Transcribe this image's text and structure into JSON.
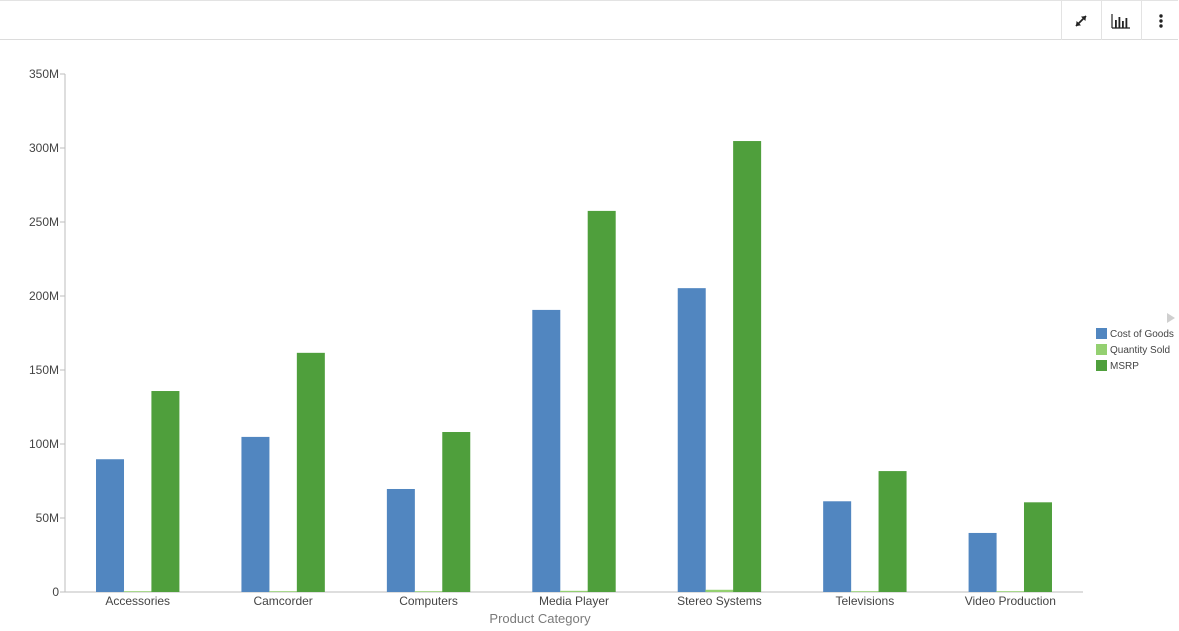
{
  "toolbar": {
    "expand_icon": "expand-diagonal-arrows-icon",
    "chart_icon": "bar-chart-icon",
    "more_icon": "vertical-ellipsis-icon"
  },
  "chart_data": {
    "type": "bar",
    "title": "",
    "xlabel": "Product Category",
    "ylabel": "",
    "ylim": [
      0,
      350000000
    ],
    "yticks": [
      {
        "value": 0,
        "label": "0"
      },
      {
        "value": 50000000,
        "label": "50M"
      },
      {
        "value": 100000000,
        "label": "100M"
      },
      {
        "value": 150000000,
        "label": "150M"
      },
      {
        "value": 200000000,
        "label": "200M"
      },
      {
        "value": 250000000,
        "label": "250M"
      },
      {
        "value": 300000000,
        "label": "300M"
      },
      {
        "value": 350000000,
        "label": "350M"
      }
    ],
    "grid": false,
    "legend_position": "right",
    "categories": [
      "Accessories",
      "Camcorder",
      "Computers",
      "Media Player",
      "Stereo Systems",
      "Televisions",
      "Video Production"
    ],
    "series": [
      {
        "name": "Cost of Goods",
        "color": "#5186c0",
        "values": [
          89700000,
          104800000,
          69600000,
          190600000,
          205300000,
          61300000,
          39900000
        ]
      },
      {
        "name": "Quantity Sold",
        "color": "#94d071",
        "values": [
          500000,
          500000,
          500000,
          800000,
          1500000,
          300000,
          200000
        ]
      },
      {
        "name": "MSRP",
        "color": "#4f9f3c",
        "values": [
          135800000,
          161600000,
          108100000,
          257500000,
          304700000,
          81700000,
          60600000
        ]
      }
    ]
  }
}
